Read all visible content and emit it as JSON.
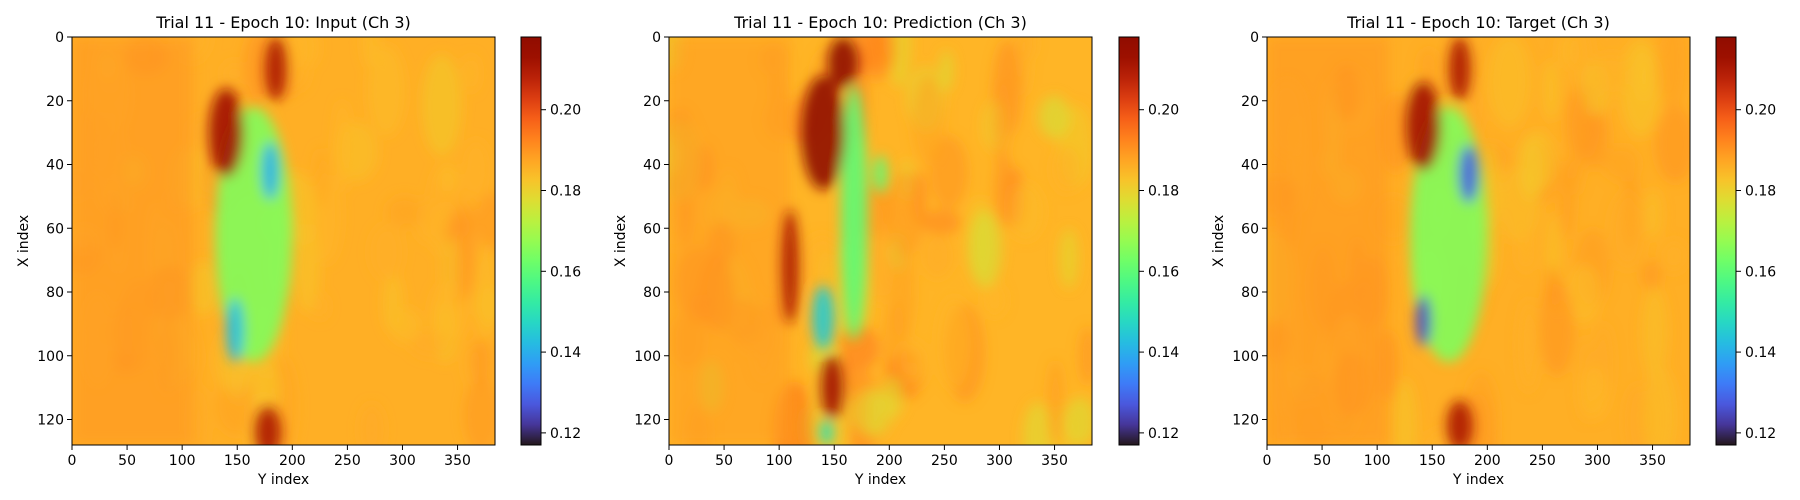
{
  "chart_data": [
    {
      "type": "heatmap",
      "title": "Trial 11 - Epoch 10: Input (Ch 3)",
      "xlabel": "Y index",
      "ylabel": "X index",
      "xlim": [
        0,
        384
      ],
      "ylim": [
        128,
        0
      ],
      "xticks": [
        0,
        50,
        100,
        150,
        200,
        250,
        300,
        350
      ],
      "yticks": [
        0,
        20,
        40,
        60,
        80,
        100,
        120
      ],
      "colorbar": {
        "range": [
          0.117,
          0.218
        ],
        "ticks": [
          0.12,
          0.14,
          0.16,
          0.18,
          0.2
        ],
        "tick_labels": [
          "0.12",
          "0.14",
          "0.16",
          "0.18",
          "0.20"
        ],
        "colormap": "turbo"
      },
      "background_value": 0.186,
      "features": [
        {
          "kind": "low",
          "x": 180,
          "y": 42,
          "radius": [
            8,
            9
          ],
          "value": 0.14
        },
        {
          "kind": "low",
          "x": 148,
          "y": 92,
          "radius": [
            8,
            10
          ],
          "value": 0.142
        },
        {
          "kind": "low",
          "x": 165,
          "y": 62,
          "radius": [
            35,
            40
          ],
          "value": 0.165
        },
        {
          "kind": "high",
          "x": 140,
          "y": 30,
          "radius": [
            16,
            14
          ],
          "value": 0.212
        },
        {
          "kind": "high",
          "x": 185,
          "y": 10,
          "radius": [
            10,
            10
          ],
          "value": 0.21
        },
        {
          "kind": "high",
          "x": 178,
          "y": 124,
          "radius": [
            12,
            8
          ],
          "value": 0.21
        }
      ]
    },
    {
      "type": "heatmap",
      "title": "Trial 11 - Epoch 10: Prediction (Ch 3)",
      "xlabel": "Y index",
      "ylabel": "X index",
      "xlim": [
        0,
        384
      ],
      "ylim": [
        128,
        0
      ],
      "xticks": [
        0,
        50,
        100,
        150,
        200,
        250,
        300,
        350
      ],
      "yticks": [
        0,
        20,
        40,
        60,
        80,
        100,
        120
      ],
      "colorbar": {
        "range": [
          0.117,
          0.218
        ],
        "ticks": [
          0.12,
          0.14,
          0.16,
          0.18,
          0.2
        ],
        "tick_labels": [
          "0.12",
          "0.14",
          "0.16",
          "0.18",
          "0.20"
        ],
        "colormap": "turbo"
      },
      "background_value": 0.185,
      "features": [
        {
          "kind": "high",
          "x": 140,
          "y": 30,
          "radius": [
            20,
            18
          ],
          "value": 0.218
        },
        {
          "kind": "high",
          "x": 158,
          "y": 8,
          "radius": [
            14,
            8
          ],
          "value": 0.218
        },
        {
          "kind": "high",
          "x": 110,
          "y": 72,
          "radius": [
            8,
            18
          ],
          "value": 0.21
        },
        {
          "kind": "high",
          "x": 148,
          "y": 110,
          "radius": [
            10,
            10
          ],
          "value": 0.212
        },
        {
          "kind": "low",
          "x": 168,
          "y": 55,
          "radius": [
            12,
            40
          ],
          "value": 0.16
        },
        {
          "kind": "low",
          "x": 140,
          "y": 88,
          "radius": [
            10,
            10
          ],
          "value": 0.145
        },
        {
          "kind": "low",
          "x": 143,
          "y": 124,
          "radius": [
            6,
            4
          ],
          "value": 0.15
        },
        {
          "kind": "low",
          "x": 192,
          "y": 43,
          "radius": [
            6,
            6
          ],
          "value": 0.16
        }
      ]
    },
    {
      "type": "heatmap",
      "title": "Trial 11 - Epoch 10: Target (Ch 3)",
      "xlabel": "Y index",
      "ylabel": "X index",
      "xlim": [
        0,
        384
      ],
      "ylim": [
        128,
        0
      ],
      "xticks": [
        0,
        50,
        100,
        150,
        200,
        250,
        300,
        350
      ],
      "yticks": [
        0,
        20,
        40,
        60,
        80,
        100,
        120
      ],
      "colorbar": {
        "range": [
          0.117,
          0.218
        ],
        "ticks": [
          0.12,
          0.14,
          0.16,
          0.18,
          0.2
        ],
        "tick_labels": [
          "0.12",
          "0.14",
          "0.16",
          "0.18",
          "0.20"
        ],
        "colormap": "turbo"
      },
      "background_value": 0.186,
      "features": [
        {
          "kind": "low",
          "x": 183,
          "y": 43,
          "radius": [
            9,
            9
          ],
          "value": 0.128
        },
        {
          "kind": "low",
          "x": 142,
          "y": 89,
          "radius": [
            7,
            8
          ],
          "value": 0.125
        },
        {
          "kind": "low",
          "x": 165,
          "y": 62,
          "radius": [
            35,
            40
          ],
          "value": 0.165
        },
        {
          "kind": "high",
          "x": 142,
          "y": 28,
          "radius": [
            16,
            14
          ],
          "value": 0.212
        },
        {
          "kind": "high",
          "x": 175,
          "y": 10,
          "radius": [
            10,
            10
          ],
          "value": 0.21
        },
        {
          "kind": "high",
          "x": 175,
          "y": 122,
          "radius": [
            12,
            8
          ],
          "value": 0.21
        }
      ]
    }
  ]
}
